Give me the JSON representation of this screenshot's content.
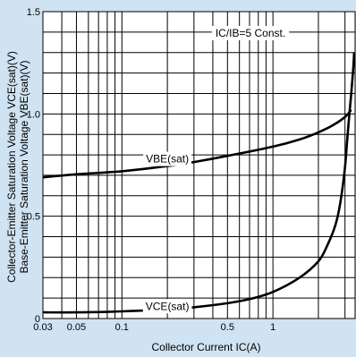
{
  "chart_data": {
    "type": "line",
    "title": "",
    "annotation": "IC/IB=5 Const.",
    "xlabel": "Collector Current IC(A)",
    "ylabel_lines": [
      "Collector-Emitter Saturation Voltage VCE(sat)(V)",
      "Base-Emitter Saturation Voltage VBE(sat)(V)"
    ],
    "x_scale": "log",
    "xlim": [
      0.03,
      3.5
    ],
    "ylim": [
      0,
      1.5
    ],
    "grid": true,
    "x_ticks": [
      {
        "value": 0.03,
        "label": "0.03"
      },
      {
        "value": 0.05,
        "label": "0.05"
      },
      {
        "value": 0.1,
        "label": "0.1"
      },
      {
        "value": 0.5,
        "label": "0.5"
      },
      {
        "value": 1,
        "label": "1"
      }
    ],
    "y_ticks": [
      {
        "value": 0,
        "label": "0"
      },
      {
        "value": 0.5,
        "label": "0.5"
      },
      {
        "value": 1.0,
        "label": "1.0"
      },
      {
        "value": 1.5,
        "label": "1.5"
      }
    ],
    "series": [
      {
        "name": "VBE(sat)",
        "label_at": {
          "x": 0.2,
          "y": 0.78
        },
        "x": [
          0.03,
          0.05,
          0.1,
          0.2,
          0.3,
          0.5,
          1,
          1.5,
          2,
          2.5,
          3,
          3.3
        ],
        "y": [
          0.69,
          0.705,
          0.72,
          0.745,
          0.765,
          0.795,
          0.84,
          0.875,
          0.91,
          0.945,
          0.985,
          1.02
        ]
      },
      {
        "name": "VCE(sat)",
        "label_at": {
          "x": 0.2,
          "y": 0.06
        },
        "x": [
          0.03,
          0.05,
          0.1,
          0.2,
          0.3,
          0.5,
          0.7,
          1,
          1.5,
          2,
          2.3,
          2.6,
          2.8,
          3.0,
          3.1,
          3.2,
          3.3,
          3.4,
          3.45
        ],
        "y": [
          0.03,
          0.03,
          0.035,
          0.045,
          0.055,
          0.075,
          0.095,
          0.13,
          0.2,
          0.28,
          0.36,
          0.46,
          0.57,
          0.74,
          0.87,
          0.99,
          1.1,
          1.22,
          1.3
        ]
      }
    ],
    "colors": {
      "background": "#cfe3f3",
      "plot_background": "#ffffff",
      "line": "#000000",
      "grid": "#000000"
    }
  }
}
